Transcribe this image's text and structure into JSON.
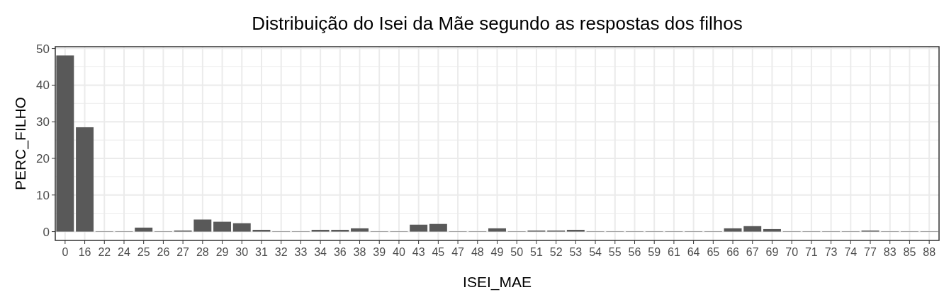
{
  "chart_data": {
    "type": "bar",
    "title": "Distribuição do Isei da Mãe segundo as respostas dos filhos",
    "xlabel": "ISEI_MAE",
    "ylabel": "PERC_FILHO",
    "categories": [
      "0",
      "16",
      "22",
      "24",
      "25",
      "26",
      "27",
      "28",
      "29",
      "30",
      "31",
      "32",
      "33",
      "34",
      "36",
      "38",
      "39",
      "40",
      "43",
      "45",
      "47",
      "48",
      "49",
      "50",
      "51",
      "52",
      "53",
      "54",
      "55",
      "56",
      "59",
      "61",
      "64",
      "65",
      "66",
      "67",
      "69",
      "70",
      "71",
      "73",
      "74",
      "77",
      "83",
      "85",
      "88"
    ],
    "values": [
      48.1,
      28.5,
      0.1,
      0.1,
      1.1,
      0.1,
      0.3,
      3.3,
      2.7,
      2.3,
      0.5,
      0.1,
      0.1,
      0.5,
      0.5,
      0.9,
      0.1,
      0.1,
      1.9,
      2.1,
      0.1,
      0.1,
      0.9,
      0.1,
      0.3,
      0.3,
      0.5,
      0.1,
      0.1,
      0.1,
      0.1,
      0.1,
      0.1,
      0.1,
      0.9,
      1.5,
      0.7,
      0.1,
      0.1,
      0.1,
      0.1,
      0.3,
      0.1,
      0.1,
      0.1
    ],
    "color": "#595959",
    "ylim": [
      -2.4,
      50.5
    ],
    "yticks": [
      0,
      10,
      20,
      30,
      40,
      50
    ],
    "grid": true
  }
}
